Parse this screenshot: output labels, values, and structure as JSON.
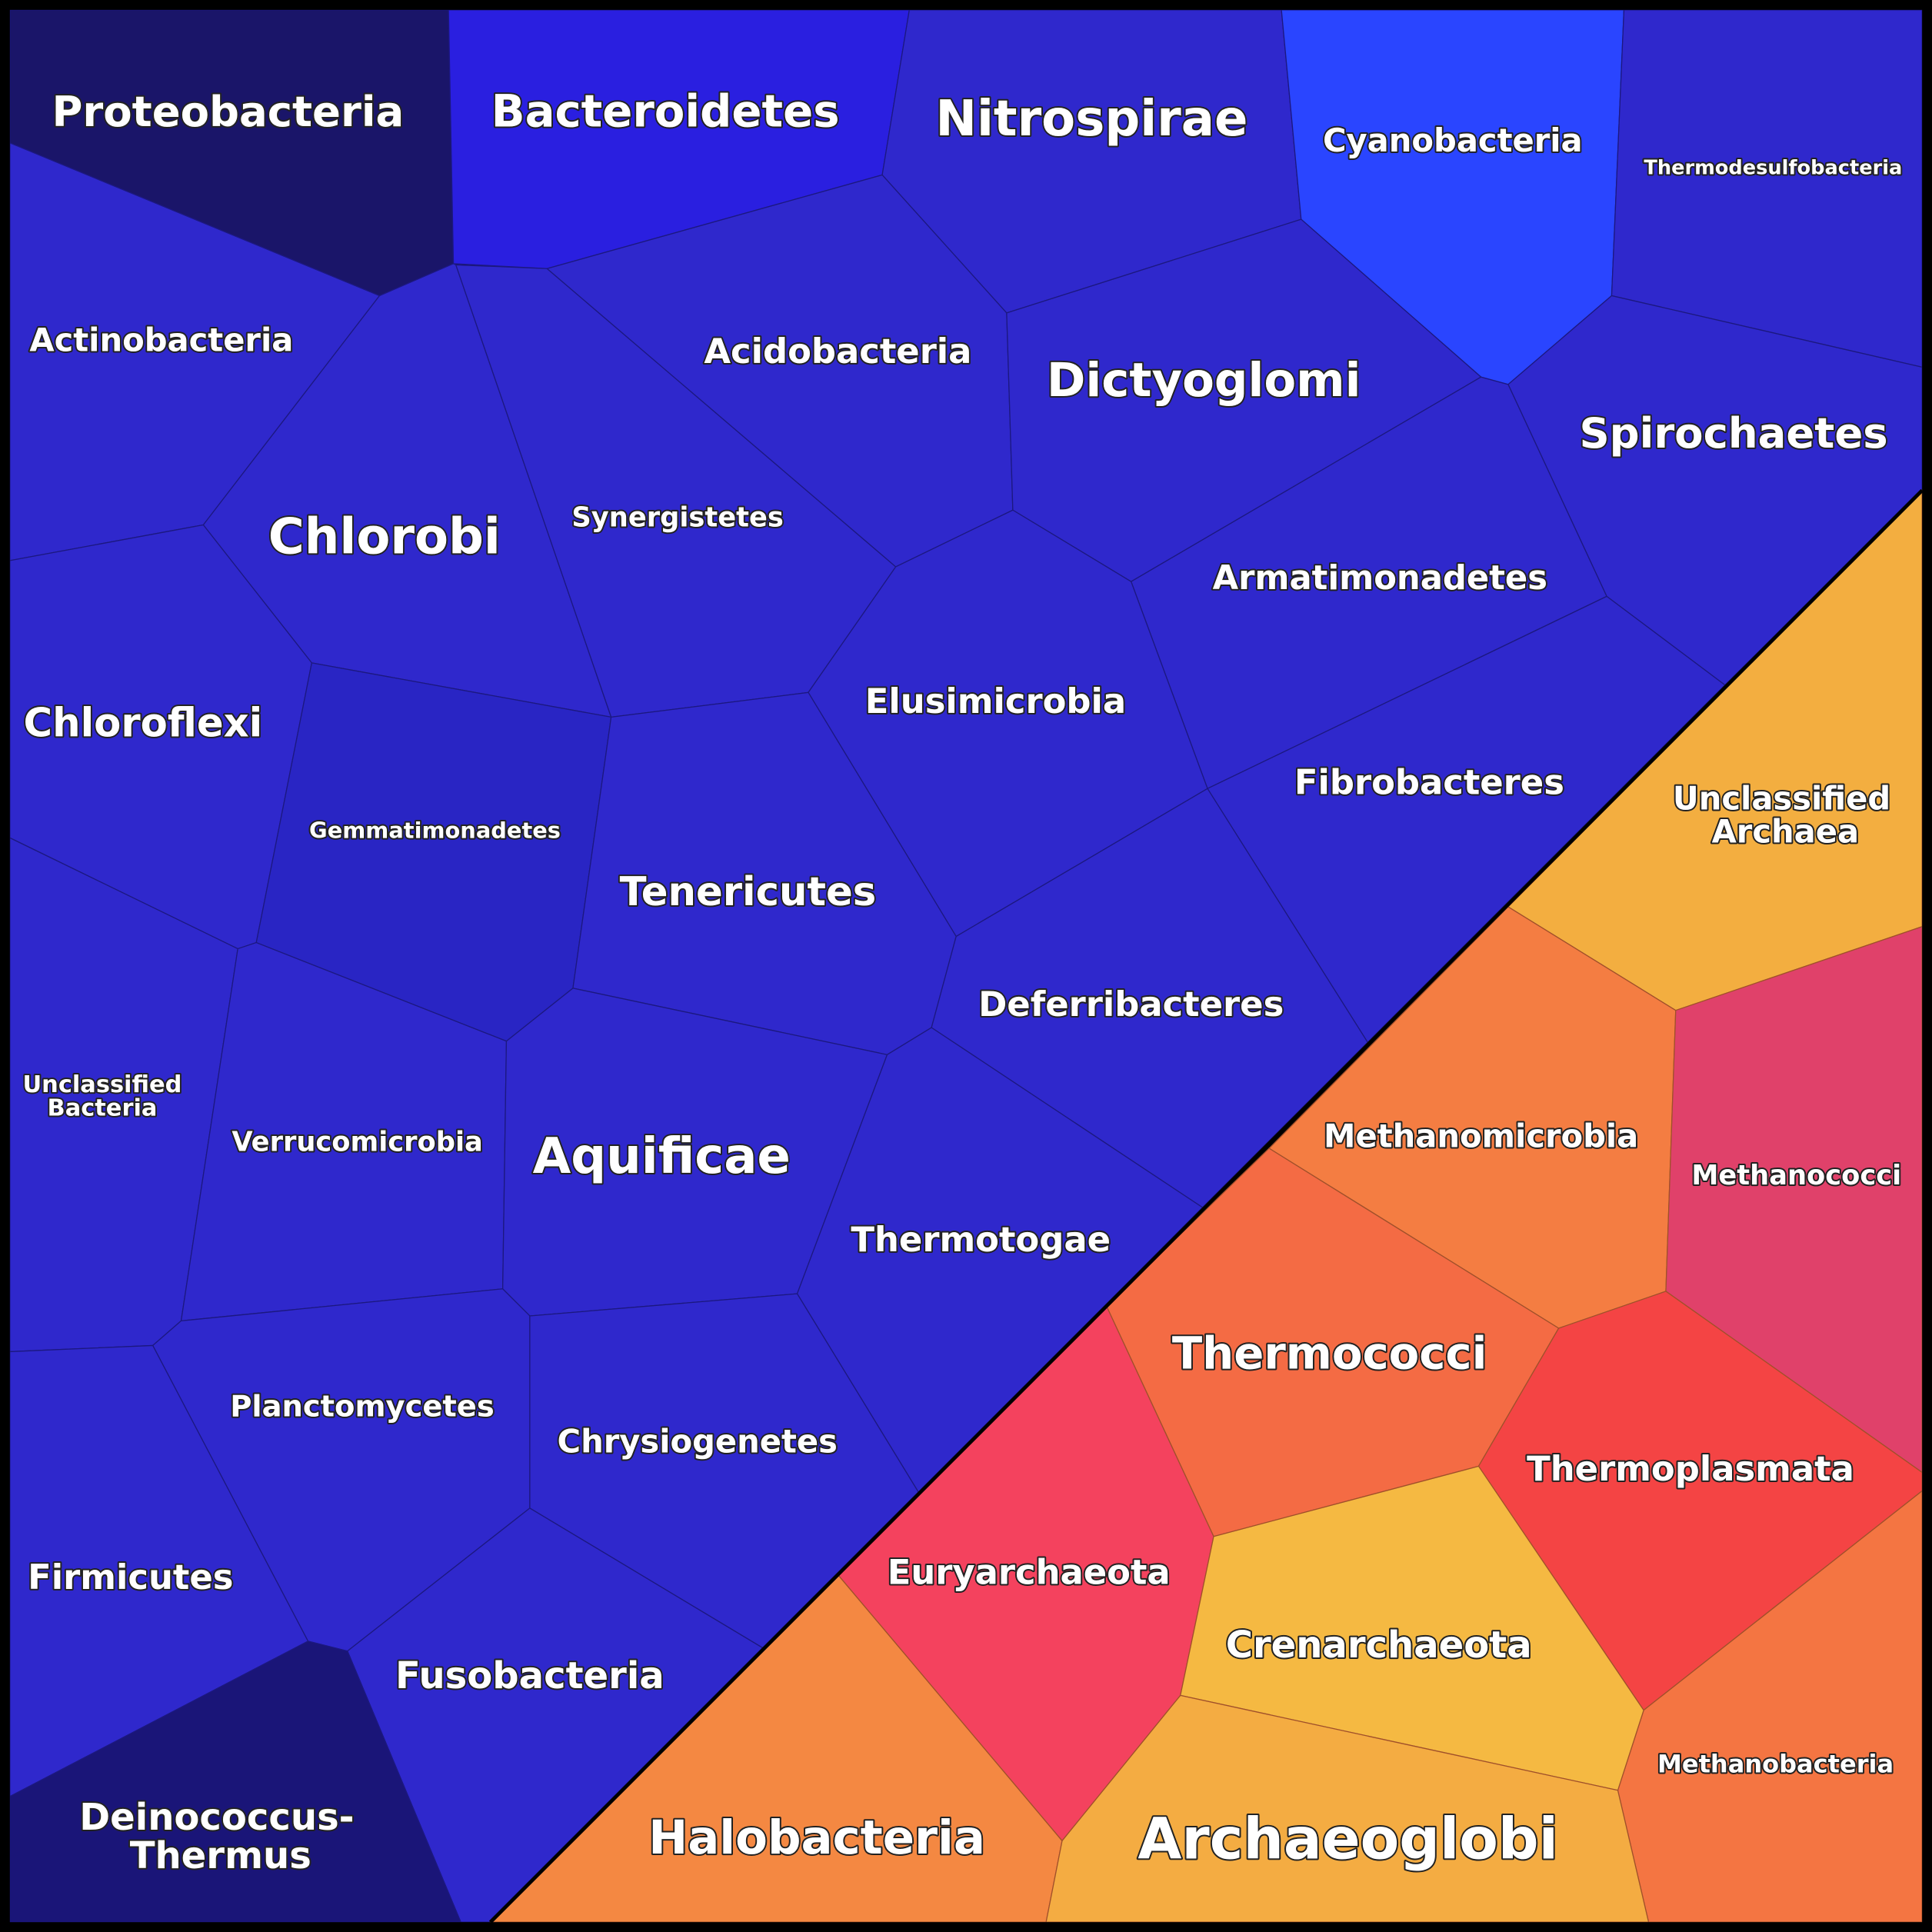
{
  "cells": [
    {
      "label": "Proteobacteria"
    },
    {
      "label": "Bacteroidetes"
    },
    {
      "label": "Nitrospirae"
    },
    {
      "label": "Cyanobacteria"
    },
    {
      "label": "Thermodesulfobacteria"
    },
    {
      "label": "Actinobacteria"
    },
    {
      "label": "Chlorobi"
    },
    {
      "label": "Synergistetes"
    },
    {
      "label": "Acidobacteria"
    },
    {
      "label": "Dictyoglomi"
    },
    {
      "label": "Spirochaetes"
    },
    {
      "label": "Armatimonadetes"
    },
    {
      "label": "Elusimicrobia"
    },
    {
      "label": "Fibrobacteres"
    },
    {
      "label": "Chloroflexi"
    },
    {
      "label": "Gemmatimonadetes"
    },
    {
      "label": "Tenericutes"
    },
    {
      "label": "Deferribacteres"
    },
    {
      "label_lines": [
        "Unclassified",
        "Bacteria"
      ]
    },
    {
      "label": "Verrucomicrobia"
    },
    {
      "label": "Aquificae"
    },
    {
      "label": "Thermotogae"
    },
    {
      "label": "Planctomycetes"
    },
    {
      "label": "Chrysiogenetes"
    },
    {
      "label": "Firmicutes"
    },
    {
      "label": "Fusobacteria"
    },
    {
      "label_lines": [
        "Deinococcus-",
        "Thermus"
      ]
    },
    {
      "label_lines": [
        "Unclassified",
        "Archaea"
      ]
    },
    {
      "label": "Methanomicrobia"
    },
    {
      "label": "Methanococci"
    },
    {
      "label": "Thermococci"
    },
    {
      "label": "Thermoplasmata"
    },
    {
      "label": "Methanobacteria"
    },
    {
      "label": "Euryarchaeota"
    },
    {
      "label": "Crenarchaeota"
    },
    {
      "label": "Halobacteria"
    },
    {
      "label": "Archaeoglobi"
    }
  ]
}
